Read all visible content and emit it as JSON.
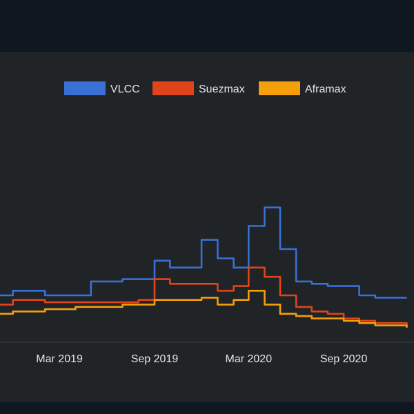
{
  "chart_data": {
    "type": "line",
    "title": "",
    "xlabel": "",
    "ylabel": "",
    "x_ticks": [
      "Mar 2019",
      "Sep 2019",
      "Mar 2020",
      "Sep 2020"
    ],
    "x": [
      "2018-11-01",
      "2018-12-01",
      "2019-01-01",
      "2019-02-01",
      "2019-03-01",
      "2019-04-01",
      "2019-05-01",
      "2019-06-01",
      "2019-07-01",
      "2019-08-01",
      "2019-09-01",
      "2019-10-01",
      "2019-11-01",
      "2019-12-01",
      "2020-01-01",
      "2020-02-01",
      "2020-03-01",
      "2020-04-01",
      "2020-05-01",
      "2020-06-01",
      "2020-07-01",
      "2020-08-01",
      "2020-09-01",
      "2020-10-01",
      "2020-11-01",
      "2020-12-01",
      "2021-01-01"
    ],
    "ylim": [
      0,
      100
    ],
    "legend_position": "top",
    "grid": false,
    "series": [
      {
        "name": "VLCC",
        "color": "#3a6fd6",
        "values": [
          20,
          22,
          22,
          20,
          20,
          20,
          26,
          26,
          27,
          27,
          35,
          32,
          32,
          44,
          36,
          32,
          50,
          58,
          40,
          26,
          25,
          24,
          24,
          20,
          19,
          19,
          19
        ]
      },
      {
        "name": "Suezmax",
        "color": "#e0441a",
        "values": [
          16,
          18,
          18,
          17,
          17,
          17,
          17,
          17,
          17,
          18,
          27,
          25,
          25,
          25,
          22,
          24,
          32,
          28,
          20,
          15,
          13,
          12,
          10,
          9,
          8,
          8,
          7
        ]
      },
      {
        "name": "Aframax",
        "color": "#f5a00a",
        "values": [
          12,
          13,
          13,
          14,
          14,
          15,
          15,
          15,
          16,
          16,
          18,
          18,
          18,
          19,
          16,
          18,
          22,
          16,
          12,
          11,
          10,
          10,
          9,
          8,
          7,
          7,
          6
        ]
      }
    ]
  }
}
